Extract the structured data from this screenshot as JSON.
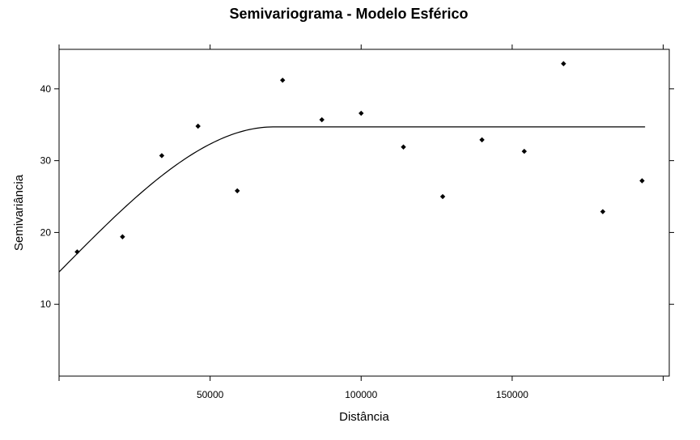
{
  "chart_data": {
    "type": "scatter",
    "title": "Semivariograma - Modelo Esférico",
    "xlabel": "Distância",
    "ylabel": "Semivariância",
    "xlim": [
      0,
      202000
    ],
    "ylim": [
      0,
      45.5
    ],
    "x_ticks": [
      50000,
      100000,
      150000
    ],
    "x_tick_labels": [
      "50000",
      "100000",
      "150000"
    ],
    "y_ticks": [
      10,
      20,
      30,
      40
    ],
    "y_tick_labels": [
      "10",
      "20",
      "30",
      "40"
    ],
    "grid": false,
    "points": {
      "x": [
        6000,
        21000,
        34000,
        46000,
        59000,
        74000,
        87000,
        100000,
        114000,
        127000,
        140000,
        154000,
        167000,
        180000,
        193000
      ],
      "y": [
        17.3,
        19.4,
        30.7,
        34.8,
        25.8,
        41.2,
        35.7,
        36.6,
        31.9,
        25.0,
        32.9,
        31.3,
        43.5,
        22.9,
        27.2
      ]
    },
    "model_curve": {
      "model": "spherical",
      "nugget": 14.5,
      "sill": 34.7,
      "range": 71000,
      "x_max": 194000
    }
  }
}
